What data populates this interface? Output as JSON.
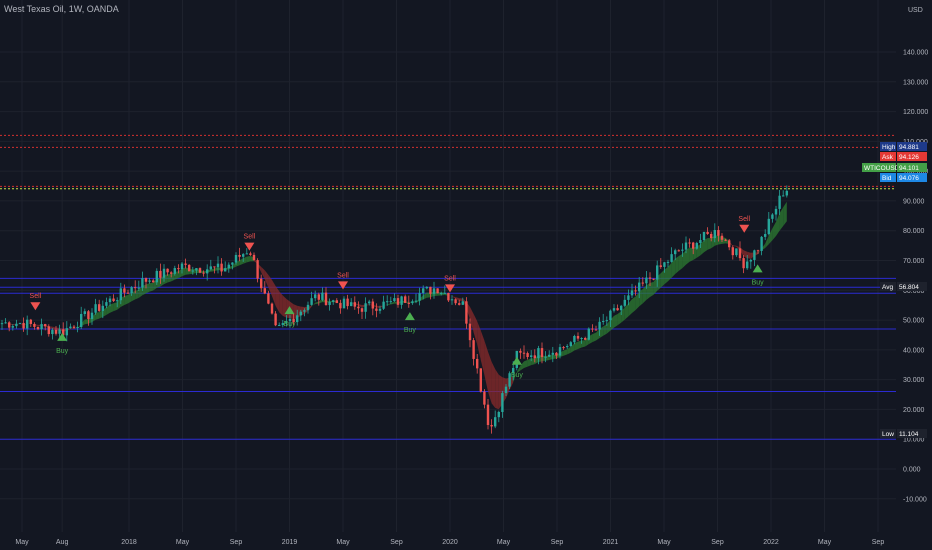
{
  "title": "West Texas Oil, 1W, OANDA",
  "currency_label": "USD",
  "colors": {
    "background": "#131722",
    "grid": "#1e222d",
    "bull_candle": "#26a69a",
    "bear_candle": "#ef5350",
    "bull_cloud": "#2e7d32",
    "bear_cloud": "#8b2b2b",
    "support_line": "#2b2bd1",
    "resistance_line": "#d32f2f",
    "buy_signal": "#4caf50",
    "sell_signal": "#ef5350"
  },
  "price_tags": [
    {
      "label": "High",
      "value": "94.881",
      "color": "#1e3a8a"
    },
    {
      "label": "Ask",
      "value": "94.126",
      "color": "#e53935"
    },
    {
      "label": "WTICOUSD",
      "value": "94.101",
      "color": "#43a047"
    },
    {
      "label": "Bid",
      "value": "94.076",
      "color": "#1e88e5"
    },
    {
      "label": "Avg",
      "value": "56.804",
      "color": "#1e222d"
    },
    {
      "label": "Low",
      "value": "11.104",
      "color": "#1e222d"
    }
  ],
  "chart_data": {
    "type": "line",
    "title": "West Texas Oil, 1W, OANDA",
    "ylabel": "USD",
    "ylim": [
      -15,
      150
    ],
    "y_ticks": [
      "140.000",
      "130.000",
      "120.000",
      "110.000",
      "100.000",
      "90.000",
      "80.000",
      "70.000",
      "60.000",
      "50.000",
      "40.000",
      "30.000",
      "20.000",
      "10.000",
      "0.000",
      "-10.000"
    ],
    "x_ticks": [
      "May",
      "Aug",
      "2018",
      "May",
      "Sep",
      "2019",
      "May",
      "Sep",
      "2020",
      "May",
      "Sep",
      "2021",
      "May",
      "Sep",
      "2022",
      "May",
      "Sep"
    ],
    "x": [
      "2017-05",
      "2017-08",
      "2017-11",
      "2018-02",
      "2018-05",
      "2018-08",
      "2018-10",
      "2018-12",
      "2019-03",
      "2019-06",
      "2019-09",
      "2019-12",
      "2020-02",
      "2020-04",
      "2020-06",
      "2020-09",
      "2020-12",
      "2021-03",
      "2021-06",
      "2021-09",
      "2021-11",
      "2021-12",
      "2022-02"
    ],
    "series": [
      {
        "values": [
          49,
          46,
          55,
          63,
          68,
          67,
          74,
          46,
          58,
          54,
          56,
          61,
          55,
          13,
          38,
          40,
          47,
          60,
          73,
          80,
          69,
          74,
          94
        ]
      }
    ],
    "horizontal_lines": [
      {
        "kind": "resistance",
        "value": 112
      },
      {
        "kind": "resistance",
        "value": 108
      },
      {
        "kind": "resistance",
        "value": 94.9
      },
      {
        "kind": "support",
        "value": 64
      },
      {
        "kind": "support",
        "value": 61
      },
      {
        "kind": "support",
        "value": 59
      },
      {
        "kind": "support",
        "value": 47
      },
      {
        "kind": "support",
        "value": 26
      },
      {
        "kind": "support",
        "value": 10
      }
    ],
    "signals": [
      {
        "type": "Sell",
        "x": "2017-06",
        "value": 56
      },
      {
        "type": "Buy",
        "x": "2017-08",
        "value": 43
      },
      {
        "type": "Sell",
        "x": "2018-10",
        "value": 76
      },
      {
        "type": "Buy",
        "x": "2019-01",
        "value": 52
      },
      {
        "type": "Sell",
        "x": "2019-05",
        "value": 63
      },
      {
        "type": "Buy",
        "x": "2019-10",
        "value": 50
      },
      {
        "type": "Sell",
        "x": "2020-01",
        "value": 62
      },
      {
        "type": "Buy",
        "x": "2020-06",
        "value": 35
      },
      {
        "type": "Sell",
        "x": "2021-11",
        "value": 82
      },
      {
        "type": "Buy",
        "x": "2021-12",
        "value": 66
      }
    ]
  }
}
